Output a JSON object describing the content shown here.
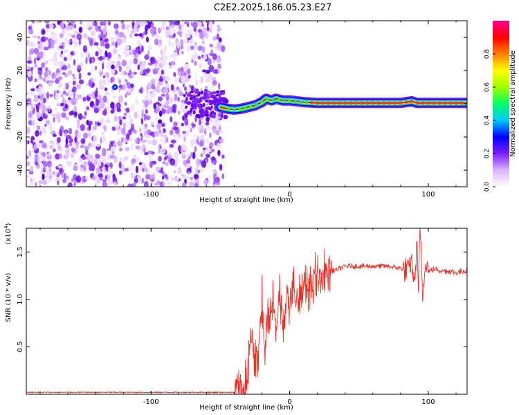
{
  "title": "C2E2.2025.186.05.23.E27",
  "chart_data": [
    {
      "type": "heatmap",
      "xlabel": "Height of straight line (km)",
      "ylabel": "Frequency (Hz)",
      "xlim": [
        -190,
        128
      ],
      "ylim": [
        -50,
        50
      ],
      "xticks": [
        -100,
        0,
        100
      ],
      "yticks": [
        -40,
        -20,
        0,
        20,
        40
      ],
      "colorbar": {
        "label": "Normalized spectral amplitude",
        "range": [
          0,
          1
        ],
        "ticks": [
          "0.0",
          "0.2",
          "0.4",
          "0.6",
          "0.8"
        ],
        "colors": [
          "#ffffff",
          "#d9b3ff",
          "#7b1fff",
          "#0000ff",
          "#00c8ff",
          "#00ff66",
          "#a0ff00",
          "#ffff00",
          "#ff8000",
          "#ff0000",
          "#ff0090"
        ]
      },
      "noise_region_x": [
        -190,
        -48
      ],
      "ridge": {
        "x": [
          -50,
          -45,
          -40,
          -35,
          -30,
          -25,
          -20,
          -17,
          -13,
          -10,
          -5,
          0,
          5,
          10,
          20,
          40,
          60,
          80,
          88,
          92,
          100,
          128
        ],
        "y": [
          -2,
          -3,
          -3.5,
          -3,
          -2,
          -1,
          1,
          3,
          2,
          3,
          2,
          2,
          1.5,
          1,
          0.5,
          0.5,
          0.5,
          0.5,
          1.5,
          0.5,
          0.5,
          0.5
        ]
      }
    },
    {
      "type": "line",
      "xlabel": "Height of straight line (km)",
      "ylabel": "SNR (10 * v/v)",
      "exponent_label": "(x10",
      "exponent_value": "4",
      "xlim": [
        -190,
        128
      ],
      "ylim": [
        0,
        1.75
      ],
      "xticks": [
        -100,
        0,
        100
      ],
      "yticks": [
        "0.5",
        "1.0",
        "1.5"
      ],
      "series": [
        {
          "color": "#e8332a",
          "x": [
            -190,
            -50,
            -40,
            -36,
            -32,
            -30,
            -28,
            -25,
            -22,
            -20,
            -18,
            -15,
            -12,
            -10,
            -7,
            -5,
            -2,
            0,
            3,
            6,
            10,
            14,
            18,
            22,
            26,
            30,
            35,
            40,
            50,
            60,
            70,
            80,
            85,
            88,
            90,
            92,
            93,
            94,
            96,
            98,
            100,
            105,
            110,
            115,
            120,
            125,
            128
          ],
          "y": [
            0.02,
            0.02,
            0.02,
            0.05,
            0.1,
            0.25,
            0.6,
            0.3,
            0.55,
            1.05,
            0.5,
            0.9,
            1.0,
            0.6,
            1.1,
            0.75,
            1.05,
            0.85,
            1.15,
            0.95,
            1.15,
            1.05,
            1.25,
            1.2,
            1.3,
            1.3,
            1.32,
            1.35,
            1.35,
            1.35,
            1.35,
            1.33,
            1.3,
            1.4,
            1.15,
            1.6,
            1.05,
            1.76,
            1.0,
            1.45,
            1.3,
            1.32,
            1.3,
            1.3,
            1.28,
            1.3,
            1.3
          ]
        }
      ]
    }
  ]
}
